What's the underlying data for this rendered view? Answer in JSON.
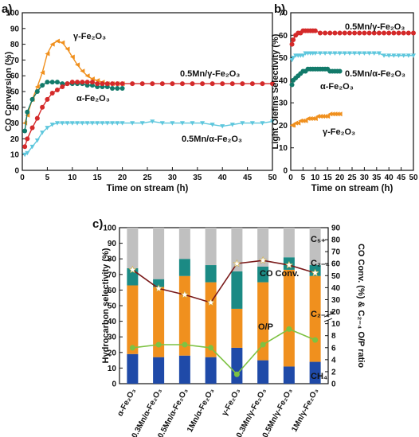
{
  "chart_data": [
    {
      "panel": "a)",
      "type": "line",
      "xlabel": "Time on stream (h)",
      "ylabel": "CO Conversion (%)",
      "xlim": [
        0,
        50
      ],
      "ylim": [
        0,
        100
      ],
      "xticks": [
        0,
        5,
        10,
        15,
        20,
        25,
        30,
        35,
        40,
        45,
        50
      ],
      "yticks": [
        0,
        10,
        20,
        30,
        40,
        50,
        60,
        70,
        80,
        90,
        100
      ],
      "series": [
        {
          "name": "γ-Fe₂O₃",
          "color": "#f0901e",
          "marker": "triangle-left",
          "x": [
            0.5,
            1,
            2,
            3,
            4,
            5,
            6,
            7,
            8,
            9,
            10,
            11,
            12,
            13,
            14,
            15,
            16,
            17,
            18,
            19,
            20
          ],
          "y": [
            30,
            35,
            45,
            53,
            62,
            74,
            80,
            82,
            81,
            77,
            72,
            67,
            63,
            60,
            58,
            57,
            56,
            55,
            55,
            55,
            55
          ]
        },
        {
          "name": "α-Fe₂O₃",
          "color": "#127a6a",
          "marker": "circle",
          "x": [
            0.5,
            1,
            2,
            3,
            4,
            5,
            6,
            7,
            8,
            9,
            10,
            11,
            12,
            13,
            14,
            15,
            16,
            17,
            18,
            19,
            20
          ],
          "y": [
            25,
            37,
            45,
            50,
            54,
            56,
            56,
            56,
            55,
            55,
            55,
            55,
            55,
            54,
            54,
            53,
            53,
            53,
            52,
            52,
            52
          ]
        },
        {
          "name": "0.5Mn/γ-Fe₂O₃",
          "color": "#d42a2a",
          "marker": "circle",
          "x": [
            0.5,
            1,
            2,
            3,
            4,
            5,
            6,
            7,
            8,
            9,
            10,
            11,
            12,
            13,
            14,
            15,
            16,
            17,
            18,
            19,
            20,
            22,
            24,
            26,
            28,
            30,
            32,
            34,
            36,
            38,
            40,
            42,
            44,
            46,
            48,
            50
          ],
          "y": [
            15,
            20,
            27,
            33,
            40,
            45,
            49,
            51,
            53,
            55,
            56,
            56,
            56,
            56,
            56,
            55,
            55,
            55,
            55,
            55,
            55,
            55,
            55,
            55,
            55,
            55,
            55,
            55,
            55,
            55,
            55,
            55,
            55,
            55,
            55,
            55
          ]
        },
        {
          "name": "0.5Mn/α-Fe₂O₃",
          "color": "#5ec7dd",
          "marker": "triangle-down",
          "x": [
            0.5,
            1,
            2,
            3,
            4,
            5,
            6,
            7,
            8,
            9,
            10,
            11,
            12,
            13,
            14,
            15,
            16,
            17,
            18,
            19,
            20,
            22,
            24,
            26,
            28,
            30,
            32,
            34,
            36,
            38,
            40,
            42,
            44,
            46,
            48,
            50
          ],
          "y": [
            10,
            11,
            15,
            19,
            24,
            27,
            29,
            30,
            30,
            30,
            30,
            30,
            30,
            30,
            30,
            30,
            30,
            30,
            30,
            30,
            30,
            30,
            30,
            31,
            30,
            30,
            30,
            30,
            30,
            29,
            28,
            29,
            30,
            30,
            30,
            31
          ]
        }
      ]
    },
    {
      "panel": "b)",
      "type": "line",
      "xlabel": "Time on stream (h)",
      "ylabel": "Light Olefins Selectivity (%)",
      "xlim": [
        0,
        50
      ],
      "ylim": [
        0,
        70
      ],
      "xticks": [
        0,
        5,
        10,
        15,
        20,
        25,
        30,
        35,
        40,
        45,
        50
      ],
      "yticks": [
        0,
        10,
        20,
        30,
        40,
        50,
        60,
        70
      ],
      "series": [
        {
          "name": "0.5Mn/γ-Fe₂O₃",
          "color": "#d42a2a",
          "marker": "circle",
          "x": [
            0.5,
            1,
            2,
            3,
            4,
            5,
            6,
            7,
            8,
            9,
            10,
            12,
            14,
            16,
            18,
            20,
            22,
            24,
            26,
            28,
            30,
            32,
            34,
            36,
            38,
            40,
            42,
            44,
            46,
            48,
            50
          ],
          "y": [
            56,
            58,
            60,
            61,
            61,
            62,
            62,
            62,
            62,
            62,
            62,
            61,
            61,
            61,
            61,
            61,
            61,
            61,
            61,
            61,
            61,
            61,
            61,
            61,
            61,
            61,
            61,
            61,
            61,
            61,
            61
          ]
        },
        {
          "name": "0.5Mn/α-Fe₂O₃",
          "color": "#5ec7dd",
          "marker": "triangle-down",
          "x": [
            0.5,
            1,
            2,
            3,
            4,
            5,
            6,
            7,
            8,
            9,
            10,
            12,
            14,
            16,
            18,
            20,
            22,
            24,
            26,
            28,
            30,
            32,
            34,
            36,
            38,
            40,
            42,
            44,
            46,
            48,
            50
          ],
          "y": [
            49,
            50,
            51,
            51,
            51,
            51,
            52,
            52,
            52,
            52,
            52,
            52,
            52,
            52,
            52,
            52,
            52,
            52,
            52,
            52,
            52,
            52,
            52,
            52,
            51,
            51,
            51,
            51,
            51,
            51,
            51
          ]
        },
        {
          "name": "α-Fe₂O₃",
          "color": "#127a6a",
          "marker": "circle",
          "x": [
            0.5,
            1,
            2,
            3,
            4,
            5,
            6,
            7,
            8,
            9,
            10,
            11,
            12,
            13,
            14,
            15,
            16,
            17,
            18,
            19,
            20
          ],
          "y": [
            38,
            40,
            41,
            42,
            43,
            44,
            44,
            45,
            45,
            45,
            45,
            45,
            45,
            45,
            45,
            45,
            44,
            44,
            44,
            44,
            44
          ]
        },
        {
          "name": "γ-Fe₂O₃",
          "color": "#f0901e",
          "marker": "triangle-left",
          "x": [
            0.5,
            1,
            2,
            3,
            4,
            5,
            6,
            7,
            8,
            9,
            10,
            11,
            12,
            13,
            14,
            15,
            16,
            17,
            18,
            19,
            20
          ],
          "y": [
            20,
            20,
            21,
            21,
            22,
            22,
            22,
            23,
            23,
            23,
            23,
            24,
            24,
            24,
            24,
            24,
            25,
            25,
            25,
            25,
            25
          ]
        }
      ]
    },
    {
      "panel": "c)",
      "type": "bar",
      "stacked": true,
      "ylabel": "Hydrocarbon selectivity (%)",
      "ylabel_right": "CO Conv. (%) & C₂₋₄ O/P ratio",
      "ylim": [
        0,
        100
      ],
      "yticks": [
        0,
        10,
        20,
        30,
        40,
        50,
        60,
        70,
        80,
        90,
        100
      ],
      "right_ticks": [
        "0",
        "2",
        "4",
        "6",
        "8",
        "10",
        "20",
        "30",
        "40",
        "50",
        "60",
        "70",
        "80",
        "90"
      ],
      "categories": [
        "α-Fe₂O₃",
        "0.3Mn/α-Fe₂O₃",
        "0.5Mn/α-Fe₂O₃",
        "1Mn/α-Fe₂O₃",
        "γ-Fe₂O₃",
        "0.3Mn/γ-Fe₂O₃",
        "0.5Mn/γ-Fe₂O₃",
        "1Mn/γ-Fe₂O₃"
      ],
      "stacks": [
        {
          "name": "CH₄",
          "color": "#1f4aa8",
          "values": [
            19,
            17,
            18,
            17,
            23,
            15,
            11,
            14
          ]
        },
        {
          "name": "C₂₋₄⁼",
          "color": "#f0901e",
          "values": [
            44,
            45,
            51,
            48,
            25,
            50,
            62,
            55
          ]
        },
        {
          "name": "C₂₋₄⁰",
          "color": "#1b8a84",
          "values": [
            11,
            5,
            11,
            11,
            24,
            10,
            8,
            7
          ]
        },
        {
          "name": "C₅₊",
          "color": "#c0c0c0",
          "values": [
            26,
            33,
            20,
            24,
            28,
            25,
            19,
            24
          ]
        }
      ],
      "lines": [
        {
          "name": "CO Conv.",
          "color": "#7a1a1a",
          "marker": "star",
          "y_on_left_scale": [
            73,
            61,
            57,
            52,
            77,
            79,
            76,
            71
          ]
        },
        {
          "name": "O/P",
          "color": "#7dc242",
          "marker": "circle",
          "y_on_left_scale": [
            23,
            25,
            25,
            23,
            6,
            25,
            35,
            28
          ]
        }
      ],
      "labels": {
        "c5": "C₅₊",
        "c24": "C₂₋₄",
        "c24o": "C₂₋₄⁼",
        "ch4": "CH₄",
        "conv": "CO Conv.",
        "op": "O/P"
      }
    }
  ],
  "text": {
    "panel_a": "a)",
    "panel_b": "b)",
    "panel_c": "c)",
    "a_lbl_gamma": "γ-Fe₂O₃",
    "a_lbl_alpha": "α-Fe₂O₃",
    "a_lbl_mn_gamma": "0.5Mn/γ-Fe₂O₃",
    "a_lbl_mn_alpha": "0.5Mn/α-Fe₂O₃",
    "b_lbl_mn_gamma": "0.5Mn/γ-Fe₂O₃",
    "b_lbl_mn_alpha": "0.5Mn/α-Fe₂O₃",
    "b_lbl_alpha": "α-Fe₂O₃",
    "b_lbl_gamma": "γ-Fe₂O₃"
  }
}
